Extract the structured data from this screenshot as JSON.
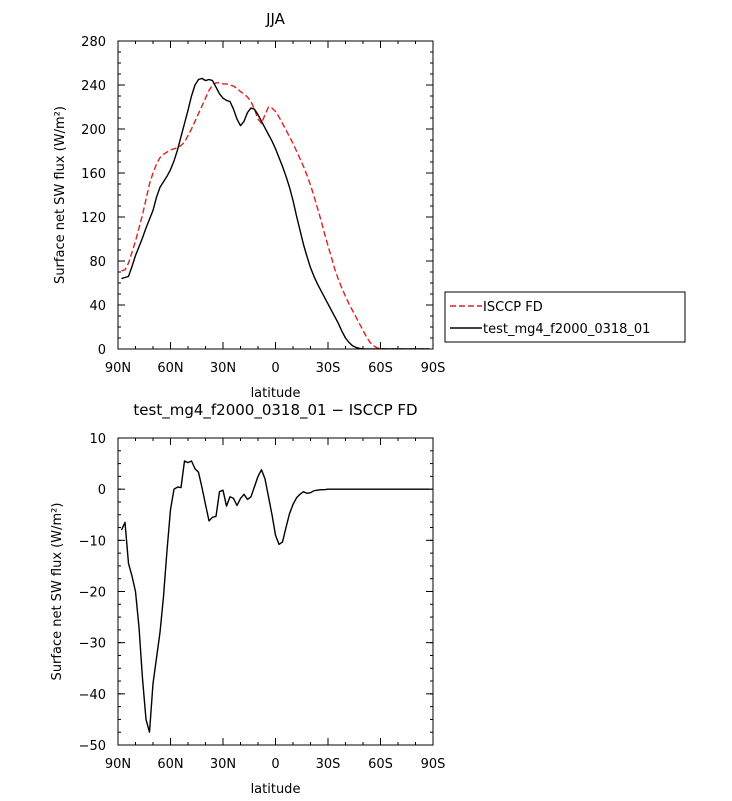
{
  "chart_data": [
    {
      "type": "line",
      "title": "JJA",
      "xlabel": "latitude",
      "ylabel": "Surface net SW flux (W/m²)",
      "xlim": [
        90,
        -90
      ],
      "ylim": [
        0,
        280
      ],
      "x_ticks": [
        90,
        60,
        30,
        0,
        -30,
        -60,
        -90
      ],
      "x_tick_labels": [
        "90N",
        "60N",
        "30N",
        "0",
        "30S",
        "60S",
        "90S"
      ],
      "y_ticks": [
        0,
        40,
        80,
        120,
        160,
        200,
        240,
        280
      ],
      "y_tick_labels": [
        "0",
        "40",
        "80",
        "120",
        "160",
        "200",
        "240",
        "280"
      ],
      "legend": "right",
      "series": [
        {
          "name": "ISCCP FD",
          "color": "#e02020",
          "dash": true,
          "x": [
            88,
            86,
            84,
            82,
            80,
            78,
            76,
            74,
            72,
            70,
            68,
            66,
            64,
            62,
            60,
            58,
            56,
            54,
            52,
            50,
            48,
            46,
            44,
            42,
            40,
            38,
            36,
            34,
            32,
            30,
            28,
            26,
            24,
            22,
            20,
            18,
            16,
            14,
            12,
            10,
            8,
            6,
            4,
            2,
            0,
            -2,
            -4,
            -6,
            -8,
            -10,
            -12,
            -14,
            -16,
            -18,
            -20,
            -22,
            -24,
            -26,
            -28,
            -30,
            -32,
            -34,
            -36,
            -38,
            -40,
            -42,
            -44,
            -46,
            -48,
            -50,
            -52,
            -54,
            -56,
            -58,
            -60,
            -62,
            -64,
            -66,
            -68,
            -70,
            -72,
            -74,
            -76,
            -78,
            -80,
            -82,
            -84,
            -86,
            -88
          ],
          "y": [
            71,
            72,
            78,
            88,
            98,
            110,
            122,
            136,
            150,
            160,
            168,
            174,
            177,
            179,
            181,
            182,
            183,
            185,
            188,
            194,
            200,
            207,
            214,
            221,
            228,
            235,
            240,
            242,
            242,
            241,
            241,
            240,
            239,
            237,
            234,
            232,
            229,
            225,
            218,
            209,
            205,
            213,
            220,
            219,
            216,
            211,
            205,
            199,
            193,
            187,
            180,
            173,
            166,
            158,
            149,
            139,
            128,
            117,
            105,
            94,
            83,
            72,
            63,
            55,
            48,
            41,
            35,
            29,
            23,
            17,
            11,
            6,
            3,
            1,
            0.5,
            0.2,
            0,
            0,
            0,
            0,
            0,
            0,
            0,
            0,
            0,
            0,
            0,
            0,
            0
          ]
        },
        {
          "name": "test_mg4_f2000_0318_01",
          "color": "#000000",
          "dash": false,
          "x": [
            88,
            86,
            84,
            82,
            80,
            78,
            76,
            74,
            72,
            70,
            68,
            66,
            64,
            62,
            60,
            58,
            56,
            54,
            52,
            50,
            48,
            46,
            44,
            42,
            40,
            38,
            36,
            34,
            32,
            30,
            28,
            26,
            24,
            22,
            20,
            18,
            16,
            14,
            12,
            10,
            8,
            6,
            4,
            2,
            0,
            -2,
            -4,
            -6,
            -8,
            -10,
            -12,
            -14,
            -16,
            -18,
            -20,
            -22,
            -24,
            -26,
            -28,
            -30,
            -32,
            -34,
            -36,
            -38,
            -40,
            -42,
            -44,
            -46,
            -48,
            -50,
            -52,
            -54,
            -56,
            -58,
            -60,
            -62,
            -64,
            -66,
            -68,
            -70,
            -72,
            -74,
            -76,
            -78,
            -80,
            -82,
            -84,
            -86,
            -88
          ],
          "y": [
            64,
            65,
            66,
            75,
            85,
            93,
            101,
            110,
            118,
            126,
            138,
            147,
            152,
            157,
            163,
            171,
            181,
            193,
            205,
            217,
            230,
            240,
            245,
            246,
            244,
            245,
            244,
            238,
            232,
            228,
            226,
            225,
            218,
            209,
            203,
            207,
            215,
            219,
            218,
            213,
            207,
            201,
            195,
            189,
            182,
            174,
            166,
            157,
            147,
            135,
            121,
            108,
            95,
            84,
            74,
            66,
            59,
            53,
            47,
            41,
            35,
            29,
            23,
            16,
            10,
            6,
            3,
            1.5,
            0.5,
            0.2,
            0,
            0,
            0,
            0,
            0,
            0,
            0,
            0,
            0,
            0,
            0,
            0,
            0,
            0,
            0,
            0,
            0,
            0,
            0
          ]
        }
      ]
    },
    {
      "type": "line",
      "title": "test_mg4_f2000_0318_01 − ISCCP FD",
      "xlabel": "latitude",
      "ylabel": "Surface net SW flux (W/m²)",
      "xlim": [
        90,
        -90
      ],
      "ylim": [
        -50,
        10
      ],
      "x_ticks": [
        90,
        60,
        30,
        0,
        -30,
        -60,
        -90
      ],
      "x_tick_labels": [
        "90N",
        "60N",
        "30N",
        "0",
        "30S",
        "60S",
        "90S"
      ],
      "y_ticks": [
        -50,
        -40,
        -30,
        -20,
        -10,
        0,
        10
      ],
      "y_tick_labels": [
        "−50",
        "−40",
        "−30",
        "−20",
        "−10",
        "0",
        "10"
      ],
      "series": [
        {
          "name": "",
          "color": "#000000",
          "dash": false,
          "x": [
            88,
            86,
            84,
            82,
            80,
            78,
            76,
            74,
            72,
            70,
            68,
            66,
            64,
            62,
            60,
            58,
            56,
            54,
            52,
            50,
            48,
            46,
            44,
            42,
            40,
            38,
            36,
            34,
            32,
            30,
            28,
            26,
            24,
            22,
            20,
            18,
            16,
            14,
            12,
            10,
            8,
            6,
            4,
            2,
            0,
            -2,
            -4,
            -6,
            -8,
            -10,
            -12,
            -14,
            -16,
            -18,
            -20,
            -22,
            -24,
            -26,
            -28,
            -30,
            -32,
            -34,
            -36,
            -38,
            -40,
            -42,
            -44,
            -46,
            -48,
            -50,
            -52,
            -54,
            -56,
            -58,
            -60,
            -62,
            -64,
            -66,
            -68,
            -70,
            -72,
            -74,
            -76,
            -78,
            -80,
            -82,
            -84,
            -86,
            -88
          ],
          "y": [
            -8,
            -6.5,
            -14.5,
            -17,
            -20,
            -27,
            -37,
            -45,
            -47.5,
            -38,
            -33,
            -28,
            -21,
            -12,
            -4,
            0,
            0.4,
            0.3,
            5.5,
            5.2,
            5.5,
            4,
            3.3,
            0.3,
            -3,
            -6.2,
            -5.5,
            -5.3,
            -0.5,
            -0.2,
            -3.3,
            -1.5,
            -1.8,
            -3.2,
            -1.8,
            -1,
            -2,
            -1.5,
            0.5,
            2.5,
            3.8,
            2,
            -1.5,
            -5,
            -9,
            -10.8,
            -10.3,
            -7.5,
            -4.8,
            -3,
            -1.7,
            -1,
            -0.5,
            -0.8,
            -0.7,
            -0.3,
            -0.2,
            -0.1,
            -0.1,
            0,
            0,
            0,
            0,
            0,
            0,
            0,
            0,
            0,
            0,
            0,
            0,
            0,
            0,
            0,
            0,
            0,
            0,
            0,
            0,
            0,
            0,
            0,
            0,
            0,
            0,
            0,
            0,
            0,
            0
          ]
        }
      ]
    }
  ]
}
